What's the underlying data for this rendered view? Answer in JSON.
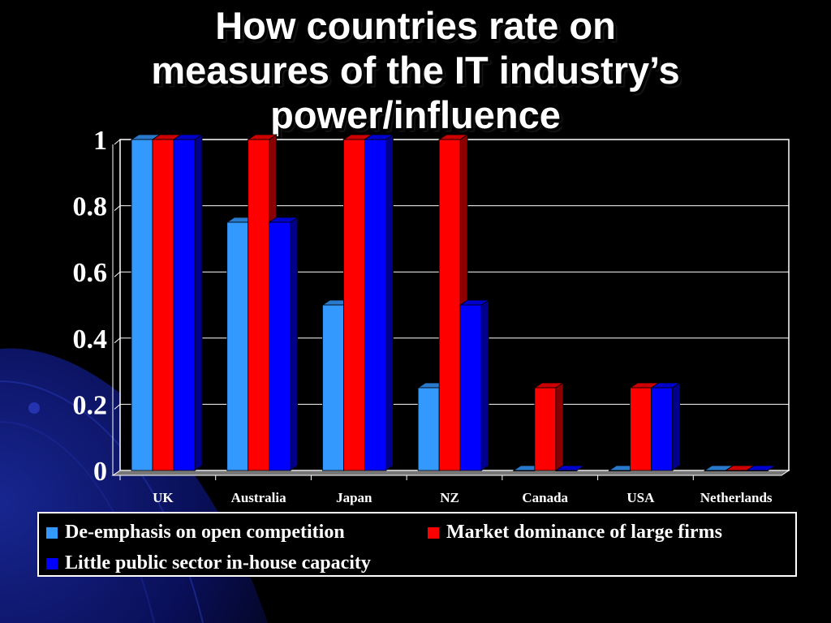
{
  "slide": {
    "title_lines": [
      "How countries rate on",
      "measures of the IT industry’s",
      "power/influence"
    ]
  },
  "chart_data": {
    "type": "bar",
    "categories": [
      "UK",
      "Australia",
      "Japan",
      "NZ",
      "Canada",
      "USA",
      "Netherlands"
    ],
    "series": [
      {
        "name": "De-emphasis on open competition",
        "values": [
          1,
          0.75,
          0.5,
          0.25,
          0,
          0,
          0
        ],
        "color": "#3399ff"
      },
      {
        "name": "Market dominance of large firms",
        "values": [
          1,
          1,
          1,
          1,
          0.25,
          0.25,
          0
        ],
        "color": "#ff0000"
      },
      {
        "name": "Little public sector in-house capacity",
        "values": [
          1,
          0.75,
          1,
          0.5,
          0,
          0.25,
          0
        ],
        "color": "#0000ff"
      }
    ],
    "yticks": [
      "0",
      "0.2",
      "0.4",
      "0.6",
      "0.8",
      "1"
    ],
    "ylim": [
      0,
      1
    ],
    "grid": true,
    "legend_position": "bottom",
    "style": "3d-clustered-column"
  }
}
